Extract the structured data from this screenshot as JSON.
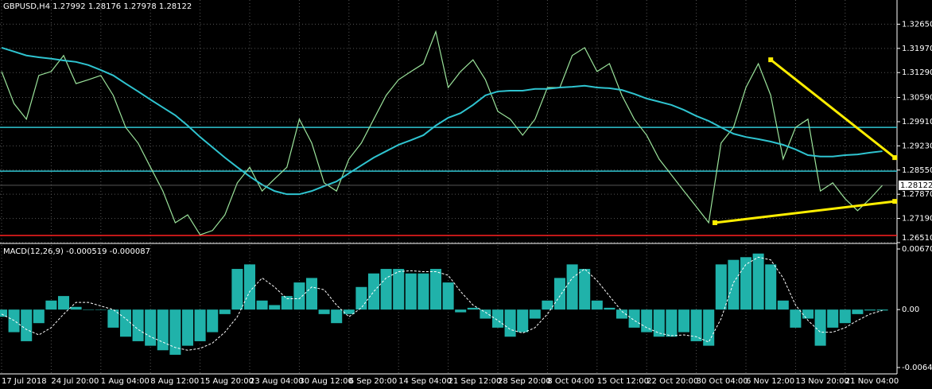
{
  "chart_data": [
    {
      "type": "price",
      "title": "GBPUSD,H4",
      "ohlc": [
        1.27992,
        1.28176,
        1.27978,
        1.28122
      ],
      "current_price": 1.28122,
      "categories": [
        "17 Jul 2018",
        null,
        null,
        null,
        "24 Jul 20:00",
        null,
        null,
        null,
        "1 Aug 04:00",
        null,
        null,
        null,
        "8 Aug 12:00",
        null,
        null,
        null,
        "15 Aug 20:00",
        null,
        null,
        null,
        "23 Aug 04:00",
        null,
        null,
        null,
        "30 Aug 12:00",
        null,
        null,
        null,
        "6 Sep 20:00",
        null,
        null,
        null,
        "14 Sep 04:00",
        null,
        null,
        null,
        "21 Sep 12:00",
        null,
        null,
        null,
        "28 Sep 20:00",
        null,
        null,
        null,
        "8 Oct 04:00",
        null,
        null,
        null,
        "15 Oct 12:00",
        null,
        null,
        null,
        "22 Oct 20:00",
        null,
        null,
        null,
        "30 Oct 04:00",
        null,
        null,
        null,
        "6 Nov 12:00",
        null,
        null,
        null,
        "13 Nov 20:00",
        null,
        null,
        null,
        "21 Nov 04:00",
        null,
        null,
        null
      ],
      "series": [
        {
          "name": "GBPUSD",
          "color": "#9be39b",
          "values": [
            1.3132,
            1.3042,
            1.2998,
            1.3121,
            1.3132,
            1.3177,
            1.3098,
            1.3109,
            1.3121,
            1.3065,
            1.2975,
            1.2931,
            1.2863,
            1.2796,
            1.2707,
            1.2729,
            1.2673,
            1.2685,
            1.2729,
            1.2819,
            1.2863,
            1.2796,
            1.283,
            1.2863,
            1.2998,
            1.2931,
            1.2819,
            1.2796,
            1.2886,
            1.2931,
            1.2998,
            1.3065,
            1.3109,
            1.3132,
            1.3154,
            1.3244,
            1.3087,
            1.3132,
            1.3165,
            1.3109,
            1.302,
            1.2998,
            1.2953,
            1.2998,
            1.3087,
            1.3087,
            1.3177,
            1.3199,
            1.3132,
            1.3154,
            1.3065,
            1.2998,
            1.2953,
            1.2886,
            1.2841,
            1.2796,
            1.2752,
            1.2707,
            1.2931,
            1.2975,
            1.3087,
            1.3154,
            1.3065,
            1.2886,
            1.2975,
            1.2998,
            1.2796,
            1.2819,
            1.2774,
            1.2741,
            1.2774,
            1.2812
          ]
        },
        {
          "color": "#2fc4d0",
          "values": [
            1.3199,
            1.3188,
            1.3177,
            1.3172,
            1.3168,
            1.3163,
            1.3159,
            1.315,
            1.3136,
            1.3121,
            1.3098,
            1.3076,
            1.3053,
            1.3031,
            1.3009,
            1.298,
            1.2948,
            1.2919,
            1.289,
            1.2863,
            1.2837,
            1.2814,
            1.2796,
            1.2787,
            1.2787,
            1.2796,
            1.281,
            1.2823,
            1.2846,
            1.2868,
            1.289,
            1.2908,
            1.2926,
            1.2939,
            1.2953,
            1.298,
            1.3002,
            1.3015,
            1.3038,
            1.3065,
            1.3076,
            1.3078,
            1.3078,
            1.3083,
            1.3083,
            1.3087,
            1.3089,
            1.3092,
            1.3087,
            1.3085,
            1.308,
            1.3069,
            1.3056,
            1.3047,
            1.3038,
            1.3024,
            1.3007,
            1.2993,
            1.2975,
            1.2957,
            1.2948,
            1.2942,
            1.2935,
            1.2926,
            1.2913,
            1.2897,
            1.2893,
            1.2893,
            1.2897,
            1.2899,
            1.2904,
            1.2908
          ]
        }
      ],
      "hlines": [
        {
          "value": 1.2975,
          "color": "#2fc4d0"
        },
        {
          "value": 1.2852,
          "color": "#2fc4d0"
        },
        {
          "value": 1.2671,
          "color": "#ff2020"
        }
      ],
      "trendlines": [
        {
          "x": [
            62,
            72
          ],
          "values": [
            1.3165,
            1.289
          ],
          "color": "#ffee00"
        },
        {
          "x": [
            57.5,
            72
          ],
          "values": [
            1.2707,
            1.2767
          ],
          "color": "#ffee00"
        }
      ],
      "ylim": [
        1.2651,
        1.3333
      ],
      "yticks": [
        {
          "value": 1.3265,
          "label": "1.32650"
        },
        {
          "value": 1.3197,
          "label": "1.31970"
        },
        {
          "value": 1.3129,
          "label": "1.31290"
        },
        {
          "value": 1.3059,
          "label": "1.30590"
        },
        {
          "value": 1.2991,
          "label": "1.29910"
        },
        {
          "value": 1.2923,
          "label": "1.29230"
        },
        {
          "value": 1.2855,
          "label": "1.28550"
        },
        {
          "value": 1.2787,
          "label": "1.27870"
        },
        {
          "value": 1.2719,
          "label": "1.27190"
        },
        {
          "value": 1.2651,
          "label": "1.26510"
        }
      ],
      "grid": true
    },
    {
      "type": "macd",
      "title": "MACD(12,26,9)",
      "readout": [
        -0.000519,
        -8.7e-05
      ],
      "series": [
        {
          "color": "#20b2aa",
          "values": [
            -0.0008,
            -0.0025,
            -0.0035,
            -0.0015,
            0.001,
            0.0015,
            0.0003,
            0.0,
            0.0,
            -0.002,
            -0.003,
            -0.0035,
            -0.004,
            -0.0045,
            -0.005,
            -0.004,
            -0.0035,
            -0.0025,
            -0.0005,
            0.0045,
            0.005,
            0.001,
            0.0005,
            0.0015,
            0.003,
            0.0035,
            -0.0005,
            -0.0015,
            -0.0005,
            0.0025,
            0.004,
            0.0045,
            0.0045,
            0.004,
            0.004,
            0.0045,
            0.003,
            -0.0003,
            0.0002,
            -0.001,
            -0.002,
            -0.003,
            -0.0025,
            -0.001,
            0.001,
            0.0035,
            0.005,
            0.0045,
            0.001,
            0.0002,
            -0.001,
            -0.002,
            -0.0025,
            -0.003,
            -0.003,
            -0.0025,
            -0.0035,
            -0.004,
            0.005,
            0.0055,
            0.0058,
            0.0062,
            0.005,
            0.001,
            -0.002,
            -0.001,
            -0.004,
            -0.002,
            -0.0015,
            -0.0005,
            -0.0001,
            -0.0001
          ]
        },
        {
          "color": "#ffffff",
          "values": [
            -0.0005,
            -0.0012,
            -0.0022,
            -0.0028,
            -0.002,
            -0.0005,
            0.0008,
            0.0008,
            0.0004,
            0.0,
            -0.001,
            -0.0022,
            -0.003,
            -0.0036,
            -0.0042,
            -0.0045,
            -0.0043,
            -0.0037,
            -0.0025,
            -0.0008,
            0.002,
            0.0035,
            0.0025,
            0.0012,
            0.0012,
            0.0025,
            0.0022,
            0.0005,
            -0.0008,
            0.0002,
            0.002,
            0.0035,
            0.0042,
            0.0043,
            0.0042,
            0.0042,
            0.0038,
            0.002,
            0.0005,
            -0.0003,
            -0.0012,
            -0.0022,
            -0.0026,
            -0.002,
            -0.0005,
            0.0015,
            0.0035,
            0.0045,
            0.0032,
            0.0015,
            -0.0002,
            -0.0012,
            -0.002,
            -0.0026,
            -0.0029,
            -0.0028,
            -0.003,
            -0.0036,
            -0.001,
            0.003,
            0.005,
            0.0058,
            0.0055,
            0.0035,
            0.0005,
            -0.0012,
            -0.0025,
            -0.0025,
            -0.002,
            -0.0012,
            -0.0005,
            -0.0001
          ]
        }
      ],
      "ylim": [
        -0.006411,
        0.006705
      ],
      "yticks": [
        0.006705,
        {
          "value": 0,
          "label": "0.00"
        },
        -0.006411
      ]
    }
  ]
}
